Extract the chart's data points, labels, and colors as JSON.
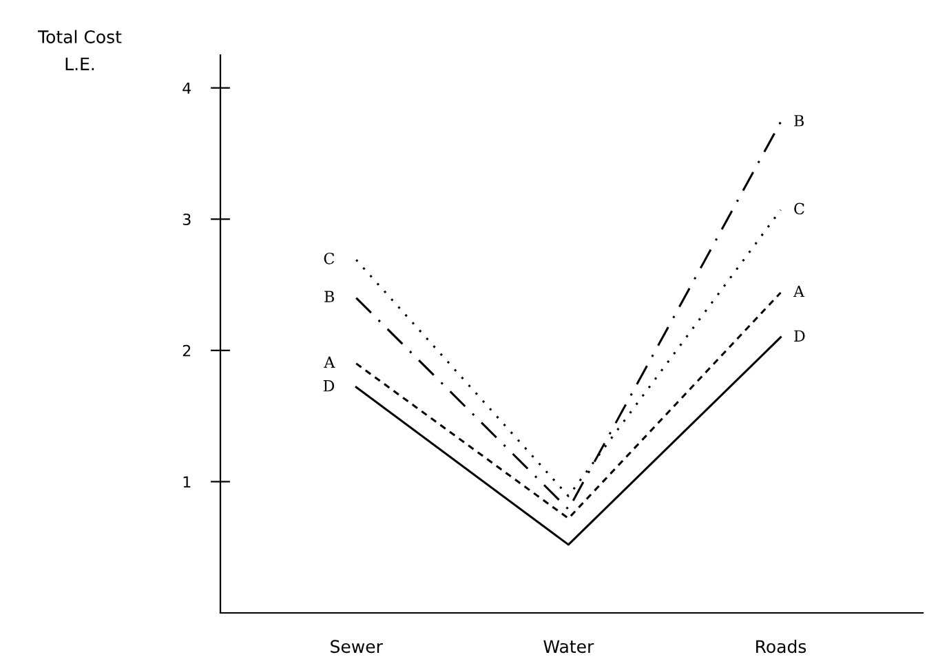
{
  "chart_data": {
    "type": "line",
    "ylabel": "Total Cost\nL.E.",
    "categories": [
      "Sewer",
      "Water",
      "Roads"
    ],
    "series": [
      {
        "name": "A",
        "color": "#000000",
        "line_style": "dashed",
        "values": [
          1.9,
          0.72,
          2.44
        ]
      },
      {
        "name": "B",
        "color": "#000000",
        "line_style": "dashdot",
        "values": [
          2.4,
          0.79,
          3.74
        ]
      },
      {
        "name": "C",
        "color": "#000000",
        "line_style": "dotted",
        "values": [
          2.69,
          0.89,
          3.07
        ]
      },
      {
        "name": "D",
        "color": "#000000",
        "line_style": "solid",
        "values": [
          1.72,
          0.52,
          2.1
        ]
      }
    ],
    "ylim": [
      0,
      4.25
    ],
    "yticks": [
      1,
      2,
      3,
      4
    ],
    "grid": false,
    "legend": false,
    "marker": "none"
  }
}
